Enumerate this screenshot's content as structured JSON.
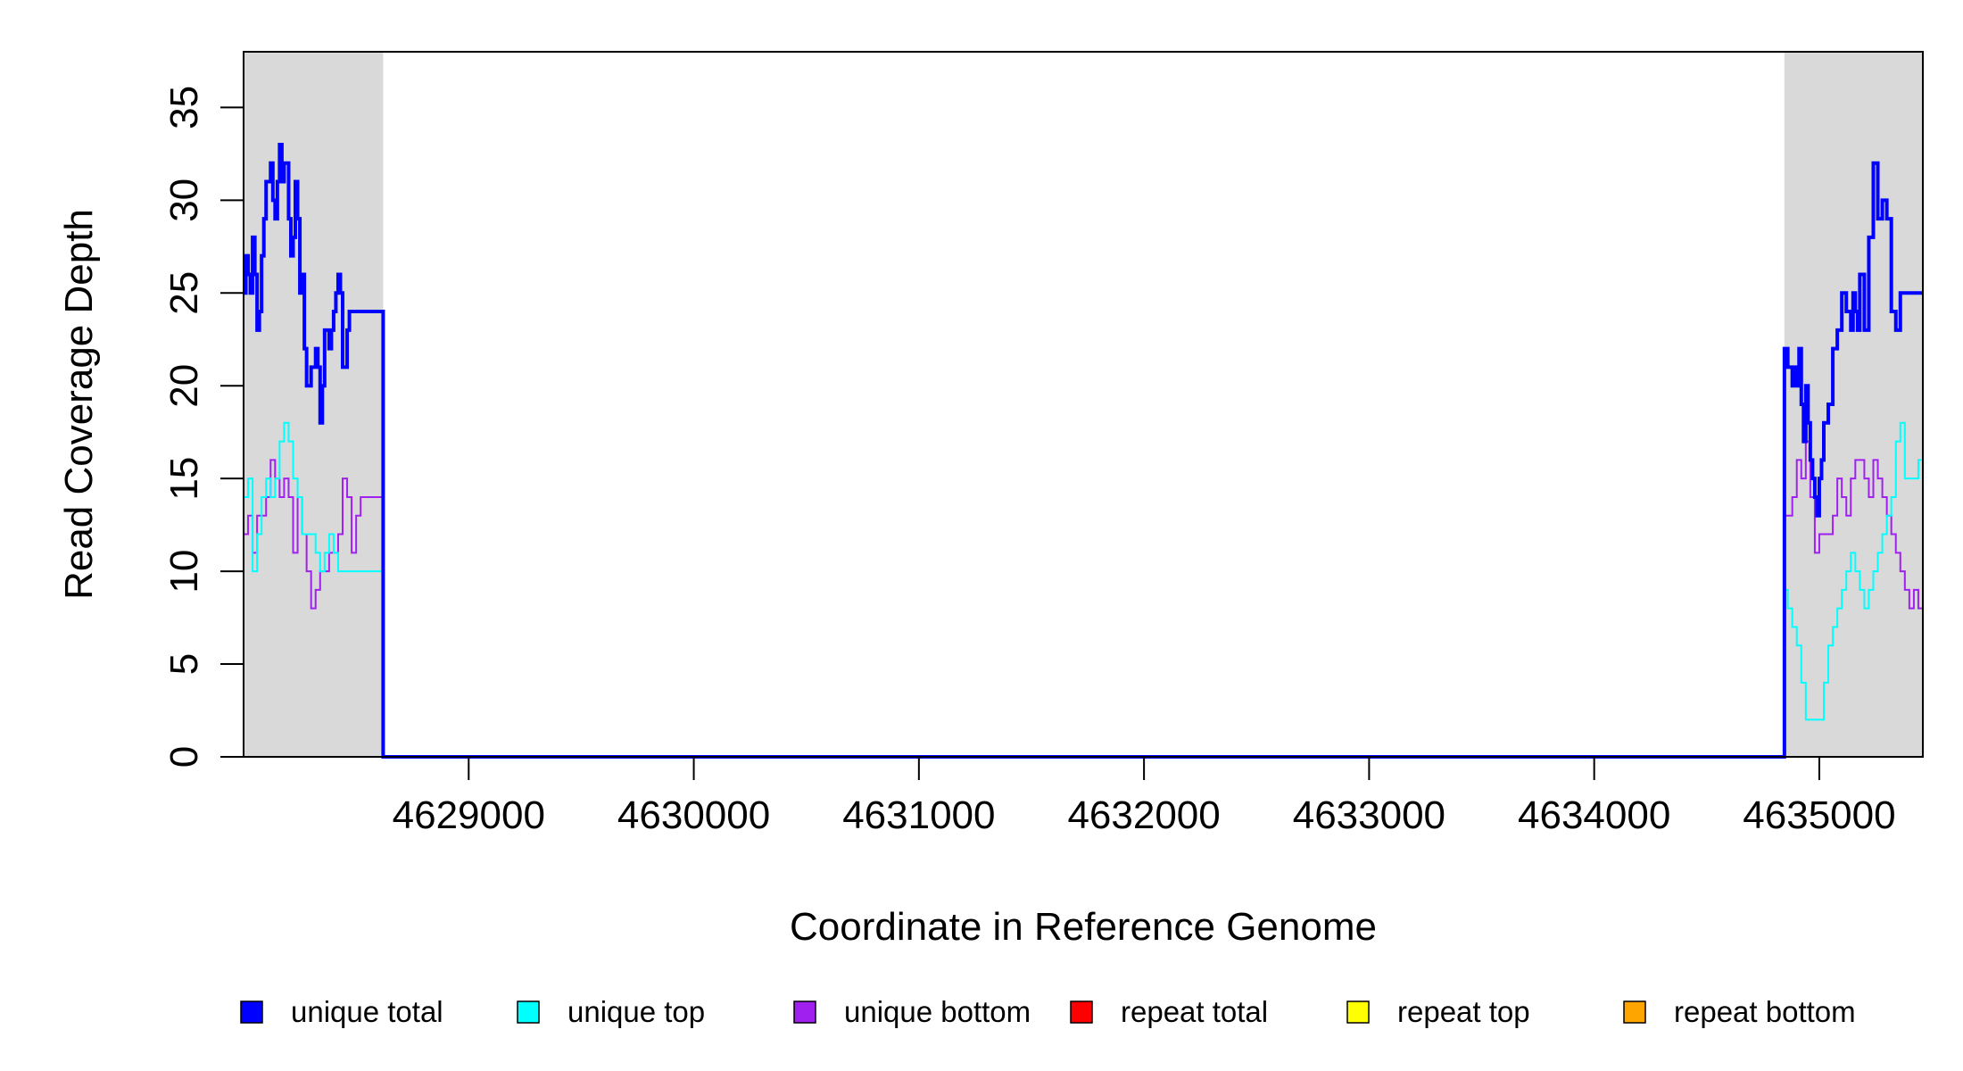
{
  "chart_data": {
    "type": "line",
    "title": "",
    "xlabel": "Coordinate in Reference Genome",
    "ylabel": "Read Coverage Depth",
    "xlim": [
      4628000,
      4635460
    ],
    "ylim": [
      0,
      38
    ],
    "x_ticks": [
      4629000,
      4630000,
      4631000,
      4632000,
      4633000,
      4634000,
      4635000
    ],
    "x_tick_labels": [
      "4629000",
      "4630000",
      "4631000",
      "4632000",
      "4633000",
      "4634000",
      "4635000"
    ],
    "y_ticks": [
      0,
      5,
      10,
      15,
      20,
      25,
      30,
      35
    ],
    "y_tick_labels": [
      "0",
      "5",
      "10",
      "15",
      "20",
      "25",
      "30",
      "35"
    ],
    "shaded_regions": [
      {
        "x0": 4628000,
        "x1": 4628620,
        "color": "#d9d9d9"
      },
      {
        "x0": 4634845,
        "x1": 4635460,
        "color": "#d9d9d9"
      }
    ],
    "grid": false,
    "legend_position": "bottom",
    "series": [
      {
        "name": "unique total",
        "color": "#0000ff",
        "width": 4,
        "x": [
          4628000,
          4628010,
          4628020,
          4628030,
          4628040,
          4628050,
          4628060,
          4628070,
          4628080,
          4628090,
          4628100,
          4628120,
          4628130,
          4628140,
          4628150,
          4628160,
          4628170,
          4628180,
          4628200,
          4628210,
          4628220,
          4628230,
          4628240,
          4628250,
          4628260,
          4628270,
          4628280,
          4628290,
          4628300,
          4628310,
          4628320,
          4628330,
          4628340,
          4628350,
          4628360,
          4628380,
          4628390,
          4628400,
          4628410,
          4628420,
          4628430,
          4628440,
          4628450,
          4628460,
          4628470,
          4628480,
          4628500,
          4628520,
          4628540,
          4628550,
          4628560,
          4628570,
          4628600,
          4628620,
          4628620,
          4634840,
          4634845,
          4634860,
          4634880,
          4634890,
          4634900,
          4634910,
          4634920,
          4634930,
          4634940,
          4634950,
          4634960,
          4634970,
          4634980,
          4634990,
          4635000,
          4635010,
          4635020,
          4635040,
          4635060,
          4635080,
          4635100,
          4635120,
          4635140,
          4635150,
          4635160,
          4635170,
          4635180,
          4635200,
          4635220,
          4635240,
          4635260,
          4635280,
          4635300,
          4635320,
          4635340,
          4635360,
          4635370,
          4635380,
          4635390,
          4635400,
          4635420,
          4635440,
          4635460
        ],
        "y": [
          25,
          27,
          26,
          25,
          28,
          26,
          23,
          24,
          27,
          29,
          31,
          32,
          30,
          29,
          31,
          33,
          31,
          32,
          29,
          27,
          28,
          31,
          29,
          25,
          26,
          22,
          20,
          20,
          21,
          21,
          22,
          21,
          18,
          20,
          23,
          22,
          23,
          24,
          25,
          26,
          25,
          21,
          21,
          23,
          24,
          24,
          24,
          24,
          24,
          24,
          24,
          24,
          24,
          24,
          0,
          0,
          22,
          21,
          20,
          21,
          20,
          22,
          19,
          17,
          20,
          18,
          16,
          15,
          14,
          13,
          15,
          16,
          18,
          19,
          22,
          23,
          25,
          24,
          23,
          25,
          24,
          23,
          26,
          23,
          28,
          32,
          29,
          30,
          29,
          24,
          23,
          25,
          25,
          25,
          25,
          25,
          25,
          25,
          25
        ]
      },
      {
        "name": "unique top",
        "color": "#00ffff",
        "width": 2,
        "x": [
          4628000,
          4628020,
          4628040,
          4628060,
          4628080,
          4628100,
          4628120,
          4628140,
          4628160,
          4628180,
          4628200,
          4628220,
          4628240,
          4628260,
          4628280,
          4628300,
          4628320,
          4628340,
          4628360,
          4628380,
          4628400,
          4628420,
          4628440,
          4628460,
          4628480,
          4628500,
          4628520,
          4628540,
          4628560,
          4628580,
          4628600,
          4628620,
          4628620,
          4634840,
          4634845,
          4634860,
          4634880,
          4634900,
          4634920,
          4634940,
          4634960,
          4634980,
          4635000,
          4635020,
          4635040,
          4635060,
          4635080,
          4635100,
          4635120,
          4635140,
          4635160,
          4635180,
          4635200,
          4635220,
          4635240,
          4635260,
          4635280,
          4635300,
          4635320,
          4635340,
          4635360,
          4635380,
          4635400,
          4635420,
          4635440,
          4635460
        ],
        "y": [
          14,
          15,
          10,
          12,
          14,
          15,
          14,
          15,
          17,
          18,
          17,
          15,
          14,
          12,
          12,
          12,
          11,
          10,
          11,
          12,
          11,
          10,
          10,
          10,
          10,
          10,
          10,
          10,
          10,
          10,
          10,
          10,
          0,
          0,
          9,
          8,
          7,
          6,
          4,
          2,
          2,
          2,
          2,
          4,
          6,
          7,
          8,
          9,
          10,
          11,
          10,
          9,
          8,
          9,
          10,
          11,
          12,
          13,
          14,
          17,
          18,
          15,
          15,
          15,
          16,
          16
        ]
      },
      {
        "name": "unique bottom",
        "color": "#a020f0",
        "width": 2,
        "x": [
          4628000,
          4628020,
          4628040,
          4628060,
          4628080,
          4628100,
          4628120,
          4628140,
          4628160,
          4628180,
          4628200,
          4628220,
          4628240,
          4628260,
          4628280,
          4628300,
          4628320,
          4628340,
          4628360,
          4628380,
          4628400,
          4628420,
          4628440,
          4628460,
          4628480,
          4628500,
          4628520,
          4628540,
          4628560,
          4628580,
          4628600,
          4628620,
          4628620,
          4634840,
          4634845,
          4634860,
          4634880,
          4634900,
          4634920,
          4634940,
          4634960,
          4634980,
          4635000,
          4635020,
          4635040,
          4635060,
          4635080,
          4635100,
          4635120,
          4635140,
          4635160,
          4635180,
          4635200,
          4635220,
          4635240,
          4635260,
          4635280,
          4635300,
          4635320,
          4635340,
          4635360,
          4635380,
          4635400,
          4635420,
          4635440,
          4635460
        ],
        "y": [
          12,
          13,
          11,
          13,
          13,
          14,
          16,
          15,
          14,
          15,
          14,
          11,
          14,
          12,
          10,
          8,
          9,
          10,
          10,
          11,
          11,
          12,
          15,
          14,
          11,
          13,
          14,
          14,
          14,
          14,
          14,
          14,
          0,
          0,
          13,
          13,
          14,
          16,
          15,
          17,
          14,
          11,
          12,
          12,
          12,
          13,
          15,
          14,
          13,
          15,
          16,
          16,
          15,
          14,
          16,
          15,
          14,
          13,
          12,
          11,
          10,
          9,
          8,
          9,
          8,
          8
        ]
      },
      {
        "name": "repeat total",
        "color": "#ff0000",
        "width": 2,
        "x": [
          4628000,
          4635460
        ],
        "y": [
          0,
          0
        ]
      },
      {
        "name": "repeat top",
        "color": "#ffff00",
        "width": 2,
        "x": [
          4628000,
          4635460
        ],
        "y": [
          0,
          0
        ]
      },
      {
        "name": "repeat bottom",
        "color": "#ffa500",
        "width": 2,
        "x": [
          4628000,
          4635460
        ],
        "y": [
          0,
          0
        ]
      }
    ]
  }
}
